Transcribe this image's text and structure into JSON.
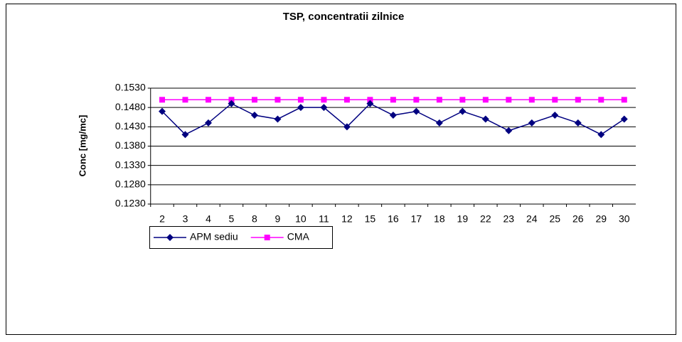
{
  "chart_data": {
    "type": "line",
    "title": "TSP, concentratii zilnice",
    "y_label": "Conc [mg/mc]",
    "categories": [
      "2",
      "3",
      "4",
      "5",
      "8",
      "9",
      "10",
      "11",
      "12",
      "15",
      "16",
      "17",
      "18",
      "19",
      "22",
      "23",
      "24",
      "25",
      "26",
      "29",
      "30"
    ],
    "series": [
      {
        "name": "APM sediu",
        "color": "#000080",
        "marker": "diamond",
        "values": [
          0.147,
          0.141,
          0.144,
          0.149,
          0.146,
          0.145,
          0.148,
          0.148,
          0.143,
          0.149,
          0.146,
          0.147,
          0.144,
          0.147,
          0.145,
          0.142,
          0.144,
          0.146,
          0.144,
          0.141,
          0.145
        ]
      },
      {
        "name": "CMA",
        "color": "#ff00ff",
        "marker": "square",
        "values": [
          0.15,
          0.15,
          0.15,
          0.15,
          0.15,
          0.15,
          0.15,
          0.15,
          0.15,
          0.15,
          0.15,
          0.15,
          0.15,
          0.15,
          0.15,
          0.15,
          0.15,
          0.15,
          0.15,
          0.15,
          0.15
        ]
      }
    ],
    "ylim": [
      0.123,
      0.153
    ],
    "yticks": [
      {
        "value": 0.123,
        "label": "0.1230"
      },
      {
        "value": 0.128,
        "label": "0.1280"
      },
      {
        "value": 0.133,
        "label": "0.1330"
      },
      {
        "value": 0.138,
        "label": "0.1380"
      },
      {
        "value": 0.143,
        "label": "0.1430"
      },
      {
        "value": 0.148,
        "label": "0.1480"
      },
      {
        "value": 0.153,
        "label": "0.1530"
      }
    ],
    "grid": true,
    "legend": "bottom-left"
  }
}
